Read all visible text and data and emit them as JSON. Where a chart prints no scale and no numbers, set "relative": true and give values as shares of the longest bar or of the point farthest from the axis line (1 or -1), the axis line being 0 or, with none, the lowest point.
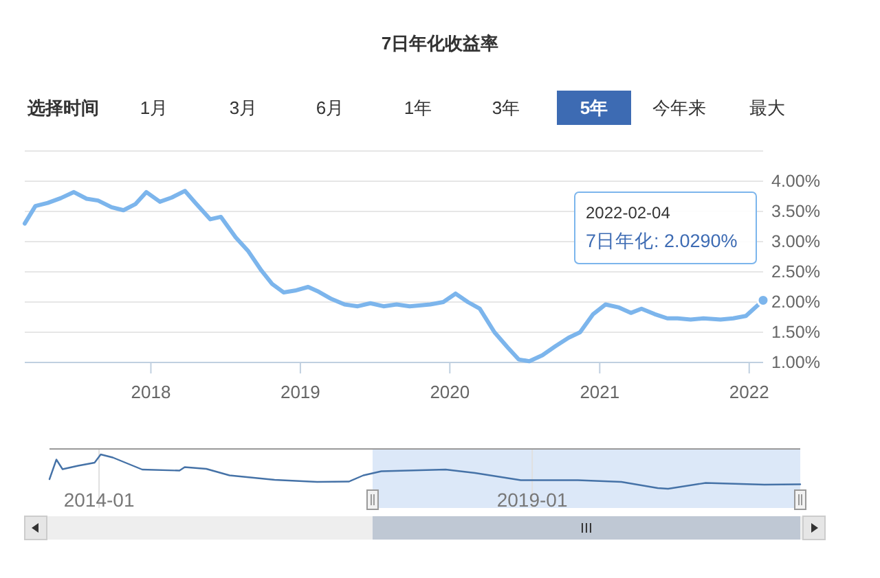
{
  "chart_data": [
    {
      "type": "line",
      "title": "7日年化收益率",
      "annotations": [
        "选择时间",
        "1月",
        "3月",
        "6月",
        "1年",
        "3年",
        "5年",
        "今年来",
        "最大",
        {
          "text": "2022-02-04\n7日年化: 2.0290%",
          "x": "2022-02-04",
          "y": 2.029
        }
      ],
      "x": [
        "2017-02-27",
        "2017-03-25",
        "2017-04-24",
        "2017-05-26",
        "2017-06-27",
        "2017-07-28",
        "2017-08-25",
        "2017-09-27",
        "2017-10-26",
        "2017-11-24",
        "2017-12-21",
        "2018-01-23",
        "2018-02-21",
        "2018-03-25",
        "2018-04-20",
        "2018-05-26",
        "2018-06-21",
        "2018-07-27",
        "2018-08-27",
        "2018-09-28",
        "2018-10-24",
        "2018-11-21",
        "2018-12-19",
        "2019-01-20",
        "2019-02-15",
        "2019-03-18",
        "2019-04-19",
        "2019-05-21",
        "2019-06-21",
        "2019-07-23",
        "2019-08-24",
        "2019-09-25",
        "2019-11-14",
        "2019-12-16",
        "2020-01-15",
        "2020-02-14",
        "2020-03-14",
        "2020-04-19",
        "2020-05-21",
        "2020-06-17",
        "2020-07-13",
        "2020-08-14",
        "2020-09-15",
        "2020-10-17",
        "2020-11-14",
        "2020-12-16",
        "2021-01-15",
        "2021-02-17",
        "2021-03-18",
        "2021-04-13",
        "2021-05-15",
        "2021-06-15",
        "2021-07-10",
        "2021-08-11",
        "2021-09-11",
        "2021-10-23",
        "2021-11-23",
        "2021-12-24",
        "2022-02-04"
      ],
      "series": [
        {
          "color": "#7cb5ec",
          "values": [
            3.3,
            3.59,
            3.64,
            3.72,
            3.82,
            3.71,
            3.68,
            3.57,
            3.52,
            3.62,
            3.82,
            3.66,
            3.73,
            3.84,
            3.64,
            3.37,
            3.41,
            3.07,
            2.84,
            2.52,
            2.3,
            2.16,
            2.19,
            2.25,
            2.17,
            2.05,
            1.96,
            1.93,
            1.98,
            1.93,
            1.96,
            1.93,
            1.96,
            2.0,
            2.14,
            2.0,
            1.89,
            1.5,
            1.25,
            1.05,
            1.02,
            1.12,
            1.27,
            1.41,
            1.5,
            1.8,
            1.96,
            1.91,
            1.82,
            1.89,
            1.8,
            1.73,
            1.73,
            1.71,
            1.73,
            1.71,
            1.73,
            1.77,
            2.029
          ]
        }
      ],
      "xlim": [
        "2017-02-27",
        "2022-02-04"
      ],
      "xticks": [
        "2018",
        "2019",
        "2020",
        "2021",
        "2022"
      ],
      "ylim": [
        1,
        4.5
      ],
      "yticks": [
        {
          "value": 1,
          "label": "1.00%"
        },
        {
          "value": 1.5,
          "label": "1.50%"
        },
        {
          "value": 2,
          "label": "2.00%"
        },
        {
          "value": 2.5,
          "label": "2.50%"
        },
        {
          "value": 3,
          "label": "3.00%"
        },
        {
          "value": 3.5,
          "label": "3.50%"
        },
        {
          "value": 4,
          "label": "4.00%"
        },
        {
          "value": 4.5,
          "label": null
        }
      ],
      "grid": "y"
    },
    {
      "type": "line",
      "relative": true,
      "x": [
        "2013-06-06",
        "2013-07-05",
        "2013-07-31",
        "2013-10-04",
        "2013-12-13",
        "2014-01-08",
        "2014-02-28",
        "2014-07-02",
        "2014-12-06",
        "2014-12-28",
        "2015-03-29",
        "2015-07-05",
        "2016-01-11",
        "2016-07-08",
        "2016-11-20",
        "2017-01-19",
        "2017-04-05",
        "2018-01-01",
        "2018-05-05",
        "2018-11-14",
        "2019-07-13",
        "2020-01-12",
        "2020-06-13",
        "2020-07-27",
        "2021-01-01",
        "2021-09-06",
        "2022-02-04"
      ],
      "series": [
        {
          "color": "#4572a7",
          "values": [
            0.28,
            0.85,
            0.57,
            0.67,
            0.76,
            1.0,
            0.91,
            0.56,
            0.53,
            0.63,
            0.58,
            0.39,
            0.26,
            0.2,
            0.21,
            0.39,
            0.51,
            0.56,
            0.46,
            0.25,
            0.25,
            0.2,
            0.02,
            0,
            0.17,
            0.12,
            0.13
          ]
        }
      ],
      "xlim": [
        "2013-06-06",
        "2022-02-04"
      ],
      "xticks": [
        "2014-01",
        "2019-01"
      ],
      "bands": [
        {
          "axis": "x",
          "from": "2017-02-27",
          "to": "2022-02-04",
          "color": "#dce8f8"
        }
      ],
      "grid": "x"
    }
  ]
}
